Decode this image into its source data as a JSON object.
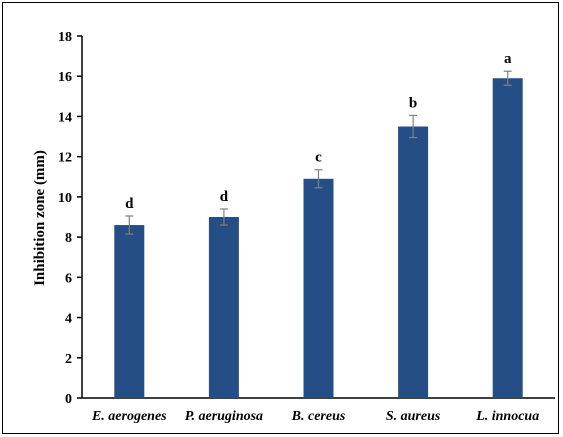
{
  "chart_data": {
    "type": "bar",
    "title": "",
    "xlabel": "",
    "ylabel": "Inhibition  zone (mm)",
    "categories": [
      "E. aerogenes",
      "P. aeruginosa",
      "B. cereus",
      "S. aureus",
      "L. innocua"
    ],
    "values": [
      8.6,
      9.0,
      10.9,
      13.5,
      15.9
    ],
    "error": [
      0.45,
      0.4,
      0.45,
      0.55,
      0.35
    ],
    "letters": [
      "d",
      "d",
      "c",
      "b",
      "a"
    ],
    "ylim": [
      0,
      18
    ],
    "yticks": [
      "0",
      "2",
      "4",
      "6",
      "8",
      "10",
      "12",
      "14",
      "16",
      "18"
    ],
    "grid": false,
    "bar_color": "#264e86",
    "error_color": "#808080"
  }
}
